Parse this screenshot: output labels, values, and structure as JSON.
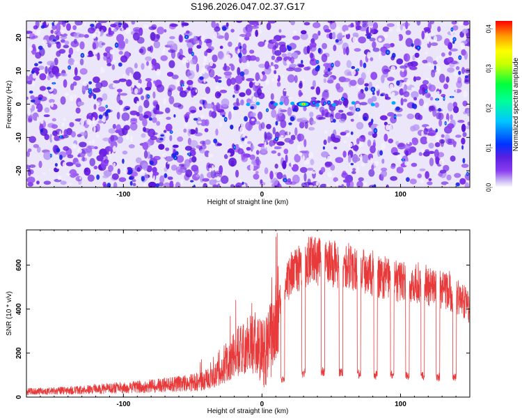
{
  "chart_data": [
    {
      "type": "heatmap",
      "title": "S196.2026.047.02.37.G17",
      "xlabel": "Height of straight line (km)",
      "ylabel": "Frequency (Hz)",
      "xlim": [
        -170,
        150
      ],
      "ylim": [
        -25,
        25
      ],
      "xticks": [
        -100,
        0,
        100
      ],
      "xtick_labels": [
        "-100",
        "0",
        "100"
      ],
      "yticks": [
        -20,
        -10,
        0,
        10,
        20
      ],
      "ytick_labels": [
        "-20",
        "-10",
        "0",
        "10",
        "20"
      ],
      "colorbar": {
        "label": "Normalized spectral amplitude",
        "range": [
          0.0,
          0.42
        ],
        "ticks": [
          0.0,
          0.1,
          0.2,
          0.3,
          0.4
        ],
        "tick_labels": [
          "0.0",
          "0.1",
          "0.2",
          "0.3",
          "0.4"
        ]
      },
      "peak": {
        "x": 30,
        "y": 0,
        "value": 0.3
      },
      "colors": [
        "#ffffff",
        "#c9b8f2",
        "#8a3df0",
        "#6a1ee0",
        "#0033ff",
        "#00c8ff",
        "#00ff3c",
        "#ffff00",
        "#ff9900",
        "#ff0000"
      ]
    },
    {
      "type": "line",
      "xlabel": "Height of straight line (km)",
      "ylabel": "SNR (10 * v/v)",
      "xlim": [
        -170,
        150
      ],
      "ylim": [
        0,
        760
      ],
      "xticks": [
        -100,
        0,
        100
      ],
      "xtick_labels": [
        "-100",
        "0",
        "100"
      ],
      "yticks": [
        0,
        200,
        400,
        600
      ],
      "ytick_labels": [
        "0",
        "200",
        "400",
        "600"
      ],
      "line_color": "#e83a3a",
      "series": [
        {
          "name": "SNR",
          "envelope_x": [
            -170,
            -140,
            -110,
            -80,
            -60,
            -45,
            -35,
            -25,
            -15,
            -8,
            0,
            5,
            10,
            15,
            25,
            35,
            45,
            55,
            65,
            75,
            85,
            95,
            105,
            115,
            125,
            135,
            142,
            150
          ],
          "envelope_y": [
            25,
            30,
            40,
            50,
            60,
            70,
            90,
            150,
            230,
            240,
            230,
            280,
            330,
            500,
            580,
            620,
            610,
            600,
            590,
            570,
            540,
            530,
            520,
            510,
            500,
            480,
            450,
            410
          ],
          "dropouts_x": [
            15,
            30,
            44,
            57,
            70,
            82,
            94,
            105,
            116,
            127,
            139
          ],
          "dropouts_y": [
            80,
            110,
            115,
            110,
            105,
            100,
            100,
            95,
            95,
            90,
            90
          ]
        }
      ]
    }
  ]
}
